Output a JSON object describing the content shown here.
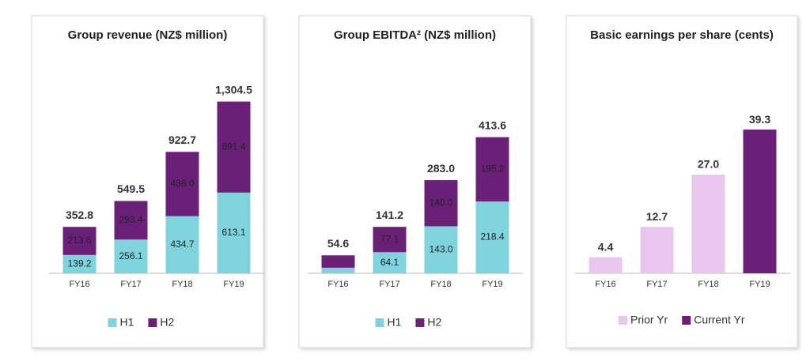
{
  "chart_data": [
    {
      "type": "stacked_bar",
      "title": "Group revenue (NZ$ million)",
      "categories": [
        "FY16",
        "FY17",
        "FY18",
        "FY19"
      ],
      "series": [
        {
          "name": "H1",
          "color": "#7fd3dc",
          "values": [
            139.2,
            256.1,
            434.7,
            613.1
          ],
          "value_labels": [
            "139.2",
            "256.1",
            "434.7",
            "613.1"
          ]
        },
        {
          "name": "H2",
          "color": "#6b2078",
          "values": [
            213.6,
            293.4,
            488.0,
            691.4
          ],
          "value_labels": [
            "213.6",
            "293.4",
            "488.0",
            "691.4"
          ]
        }
      ],
      "totals": [
        352.8,
        549.5,
        922.7,
        1304.5
      ],
      "total_labels": [
        "352.8",
        "549.5",
        "922.7",
        "1,304.5"
      ],
      "ylim": [
        0,
        1500
      ]
    },
    {
      "type": "stacked_bar",
      "title": "Group EBITDA² (NZ$ million)",
      "categories": [
        "FY16",
        "FY17",
        "FY18",
        "FY19"
      ],
      "series": [
        {
          "name": "H1",
          "color": "#7fd3dc",
          "values": [
            17,
            64.1,
            143.0,
            218.4
          ],
          "value_labels": [
            null,
            "64.1",
            "143.0",
            "218.4"
          ]
        },
        {
          "name": "H2",
          "color": "#6b2078",
          "values": [
            37.6,
            77.1,
            140.0,
            195.2
          ],
          "value_labels": [
            null,
            "77.1",
            "140.0",
            "195.2"
          ]
        }
      ],
      "totals": [
        54.6,
        141.2,
        283.0,
        413.6
      ],
      "total_labels": [
        "54.6",
        "141.2",
        "283.0",
        "413.6"
      ],
      "ylim": [
        0,
        600
      ]
    },
    {
      "type": "bar",
      "title": "Basic earnings per share (cents)",
      "categories": [
        "FY16",
        "FY17",
        "FY18",
        "FY19"
      ],
      "values": [
        4.4,
        12.7,
        27.0,
        39.3
      ],
      "value_labels": [
        "4.4",
        "12.7",
        "27.0",
        "39.3"
      ],
      "colors": [
        "#e8c6ee",
        "#e8c6ee",
        "#e8c6ee",
        "#6b2078"
      ],
      "legend": [
        {
          "name": "Prior Yr",
          "color": "#e8c6ee"
        },
        {
          "name": "Current Yr",
          "color": "#6b2078"
        }
      ],
      "ylim": [
        0,
        54
      ]
    }
  ]
}
